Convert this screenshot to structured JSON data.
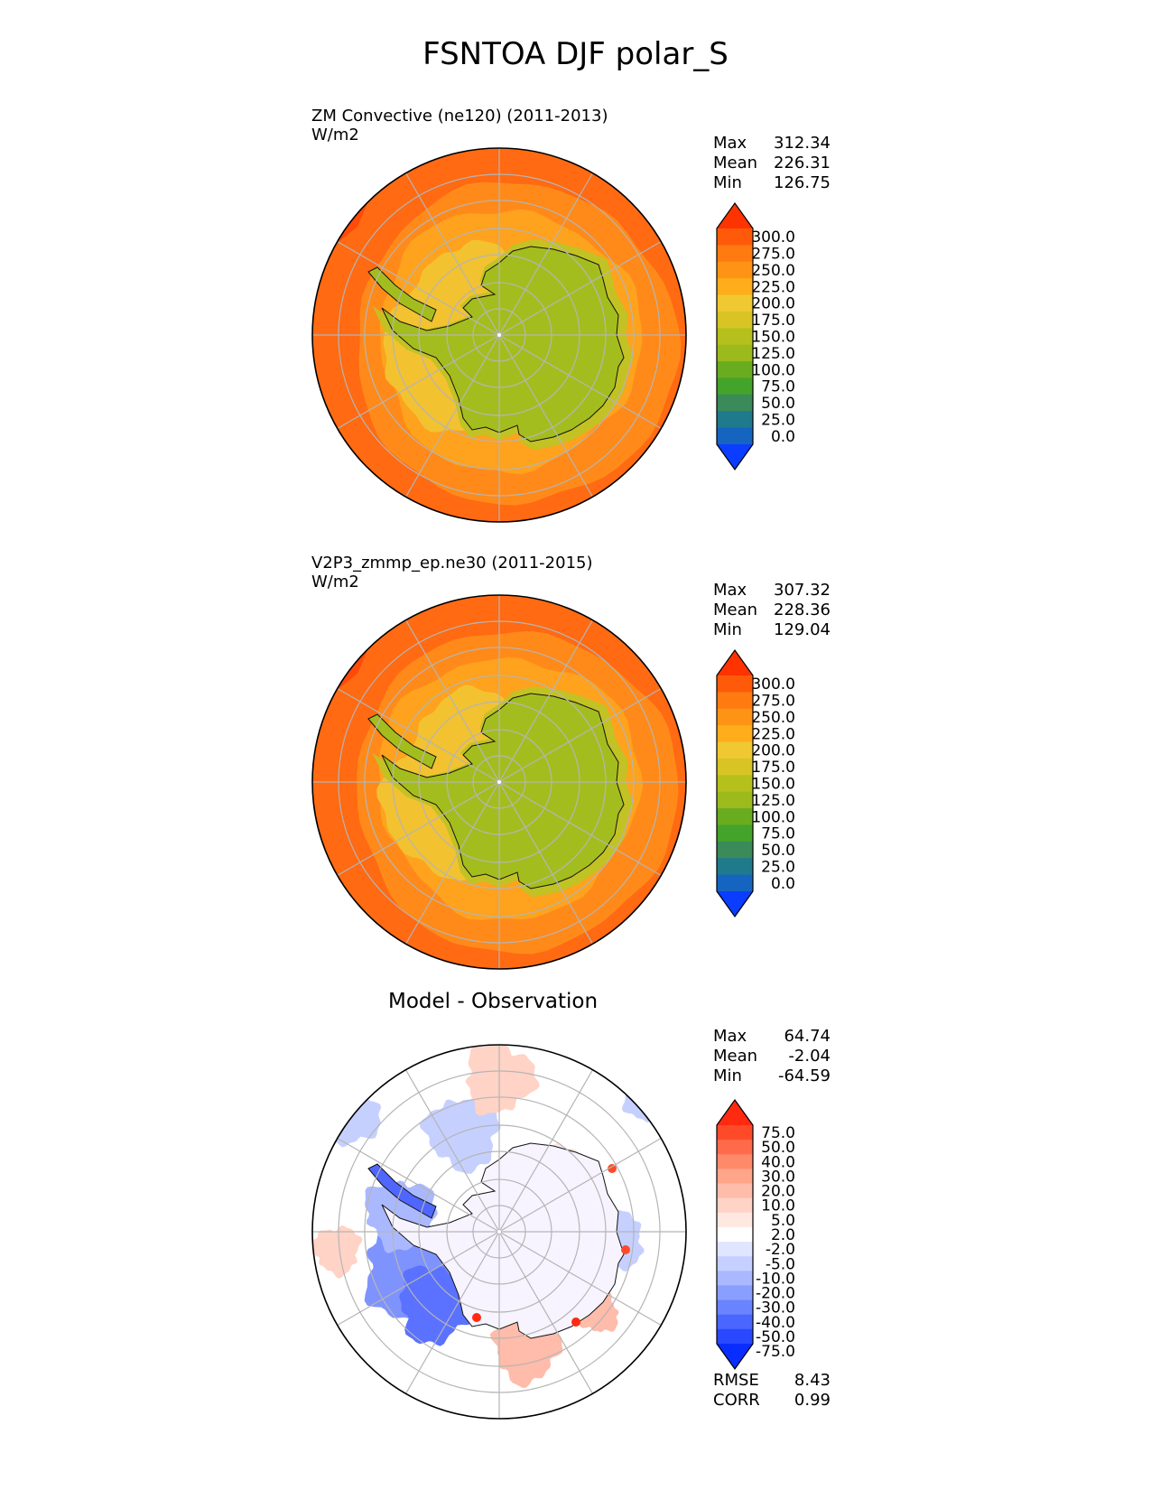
{
  "title": "FSNTOA DJF polar_S",
  "panels": [
    {
      "header": "ZM Convective (ne120) (2011-2013)",
      "units": "W/m2",
      "stats": {
        "max_label": "Max",
        "max": "312.34",
        "mean_label": "Mean",
        "mean": "226.31",
        "min_label": "Min",
        "min": "126.75"
      }
    },
    {
      "header": "V2P3_zmmp_ep.ne30 (2011-2015)",
      "units": "W/m2",
      "stats": {
        "max_label": "Max",
        "max": "307.32",
        "mean_label": "Mean",
        "mean": "228.36",
        "min_label": "Min",
        "min": "129.04"
      }
    },
    {
      "header": "Model - Observation",
      "stats": {
        "max_label": "Max",
        "max": "64.74",
        "mean_label": "Mean",
        "mean": "-2.04",
        "min_label": "Min",
        "min": "-64.59"
      },
      "metrics": {
        "rmse_label": "RMSE",
        "rmse": "8.43",
        "corr_label": "CORR",
        "corr": "0.99"
      }
    }
  ],
  "chart_data": [
    {
      "type": "heatmap",
      "projection": "south polar stereographic",
      "title": "ZM Convective (ne120) (2011-2013)",
      "units": "W/m2",
      "colorbar_ticks": [
        "300.0",
        "275.0",
        "250.0",
        "225.0",
        "200.0",
        "175.0",
        "150.0",
        "125.0",
        "100.0",
        "75.0",
        "50.0",
        "25.0",
        "0.0"
      ],
      "colorbar_colors": [
        "#ff3300",
        "#ff5a0a",
        "#ff7a10",
        "#ff9315",
        "#ffad1a",
        "#f0c832",
        "#d8c425",
        "#b6c01c",
        "#9cba1c",
        "#6aac20",
        "#44a32a",
        "#3a8a5a",
        "#1f7a8c",
        "#1565c0",
        "#0a3dff"
      ],
      "colorbar_extend": "both",
      "stats": {
        "max": 312.34,
        "mean": 226.31,
        "min": 126.75
      },
      "colors": {
        "ocean_outer": "#ff6a12",
        "ocean_mid": "#ff8a1a",
        "sea_ice": "#ffa21d",
        "coast_band": "#f2c231",
        "continent": "#a4bd1e",
        "continent_edge": "#c2c224"
      }
    },
    {
      "type": "heatmap",
      "projection": "south polar stereographic",
      "title": "V2P3_zmmp_ep.ne30 (2011-2015)",
      "units": "W/m2",
      "colorbar_ticks": [
        "300.0",
        "275.0",
        "250.0",
        "225.0",
        "200.0",
        "175.0",
        "150.0",
        "125.0",
        "100.0",
        "75.0",
        "50.0",
        "25.0",
        "0.0"
      ],
      "colorbar_colors": [
        "#ff3300",
        "#ff5a0a",
        "#ff7a10",
        "#ff9315",
        "#ffad1a",
        "#f0c832",
        "#d8c425",
        "#b6c01c",
        "#9cba1c",
        "#6aac20",
        "#44a32a",
        "#3a8a5a",
        "#1f7a8c",
        "#1565c0",
        "#0a3dff"
      ],
      "colorbar_extend": "both",
      "stats": {
        "max": 307.32,
        "mean": 228.36,
        "min": 129.04
      },
      "colors": {
        "ocean_outer": "#ff6a12",
        "ocean_mid": "#ff8a1a",
        "sea_ice": "#ffa21d",
        "coast_band": "#f2c231",
        "continent": "#a4bd1e",
        "continent_edge": "#c2c224"
      }
    },
    {
      "type": "heatmap",
      "projection": "south polar stereographic",
      "title": "Model - Observation",
      "colorbar_ticks": [
        "75.0",
        "50.0",
        "40.0",
        "30.0",
        "20.0",
        "10.0",
        "5.0",
        "2.0",
        "-2.0",
        "-5.0",
        "-10.0",
        "-20.0",
        "-30.0",
        "-40.0",
        "-50.0",
        "-75.0"
      ],
      "colorbar_colors": [
        "#ff2a10",
        "#ff4a2a",
        "#ff6a4a",
        "#ff8a6a",
        "#ffa58a",
        "#ffbcaa",
        "#ffd3c6",
        "#ffe8e0",
        "#ffffff",
        "#e0e6ff",
        "#c6d0ff",
        "#aab8ff",
        "#8a9eff",
        "#6a84ff",
        "#4a66ff",
        "#2a48ff",
        "#0a2dff"
      ],
      "colorbar_extend": "both",
      "stats": {
        "max": 64.74,
        "mean": -2.04,
        "min": -64.59
      },
      "metrics": {
        "rmse": 8.43,
        "corr": 0.99
      }
    }
  ]
}
